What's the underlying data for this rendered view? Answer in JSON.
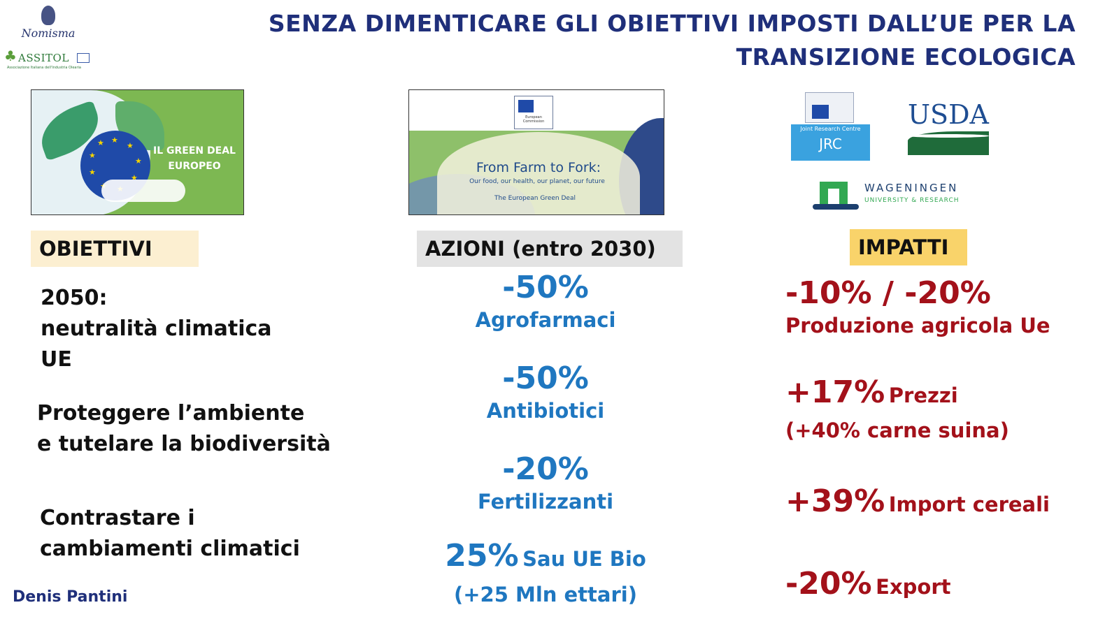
{
  "title": "SENZA DIMENTICARE GLI OBIETTIVI IMPOSTI DALL’UE PER LA TRANSIZIONE ECOLOGICA",
  "logos": {
    "nomisma": "Nomisma",
    "assitol": "ASSITOL",
    "assitol_sub": "Associazione Italiana dell'Industria Olearia",
    "jrc_line1": "Joint Research Centre",
    "jrc_line2": "JRC",
    "usda": "USDA",
    "wageningen_line1": "WAGENINGEN",
    "wageningen_line2": "UNIVERSITY & RESEARCH"
  },
  "images": {
    "green_deal_label": "IL GREEN DEAL EUROPEO",
    "f2f_ec": "European Commission",
    "f2f_title": "From Farm to Fork:",
    "f2f_subtitle": "Our food, our health, our planet, our future",
    "f2f_footer": "The European Green Deal"
  },
  "headers": {
    "obiettivi": "OBIETTIVI",
    "azioni": "AZIONI (entro 2030)",
    "impatti": "IMPATTI"
  },
  "objectives": [
    "2050:\nneutralità climatica\nUE",
    "Proteggere l’ambiente\ne tutelare la biodiversità",
    "Contrastare i\ncambiamenti climatici"
  ],
  "actions": [
    {
      "value": "-50%",
      "label": "Agrofarmaci"
    },
    {
      "value": "-50%",
      "label": "Antibiotici"
    },
    {
      "value": "-20%",
      "label": "Fertilizzanti"
    },
    {
      "value": "25%",
      "label": "Sau UE Bio",
      "note": "(+25 Mln ettari)"
    }
  ],
  "impacts": [
    {
      "value": "-10% / -20%",
      "label": "Produzione agricola Ue"
    },
    {
      "value": "+17%",
      "label": "Prezzi",
      "note": "(+40% carne suina)"
    },
    {
      "value": "+39%",
      "label": "Import cereali"
    },
    {
      "value": "-20%",
      "label": "Export"
    }
  ],
  "author": "Denis Pantini",
  "colors": {
    "title": "#1f2f7a",
    "actions": "#1f77c0",
    "impacts": "#a3111a",
    "obiettivi_bg": "#fcefd1",
    "azioni_bg": "#e3e3e3",
    "impatti_bg": "#f9d36a"
  }
}
